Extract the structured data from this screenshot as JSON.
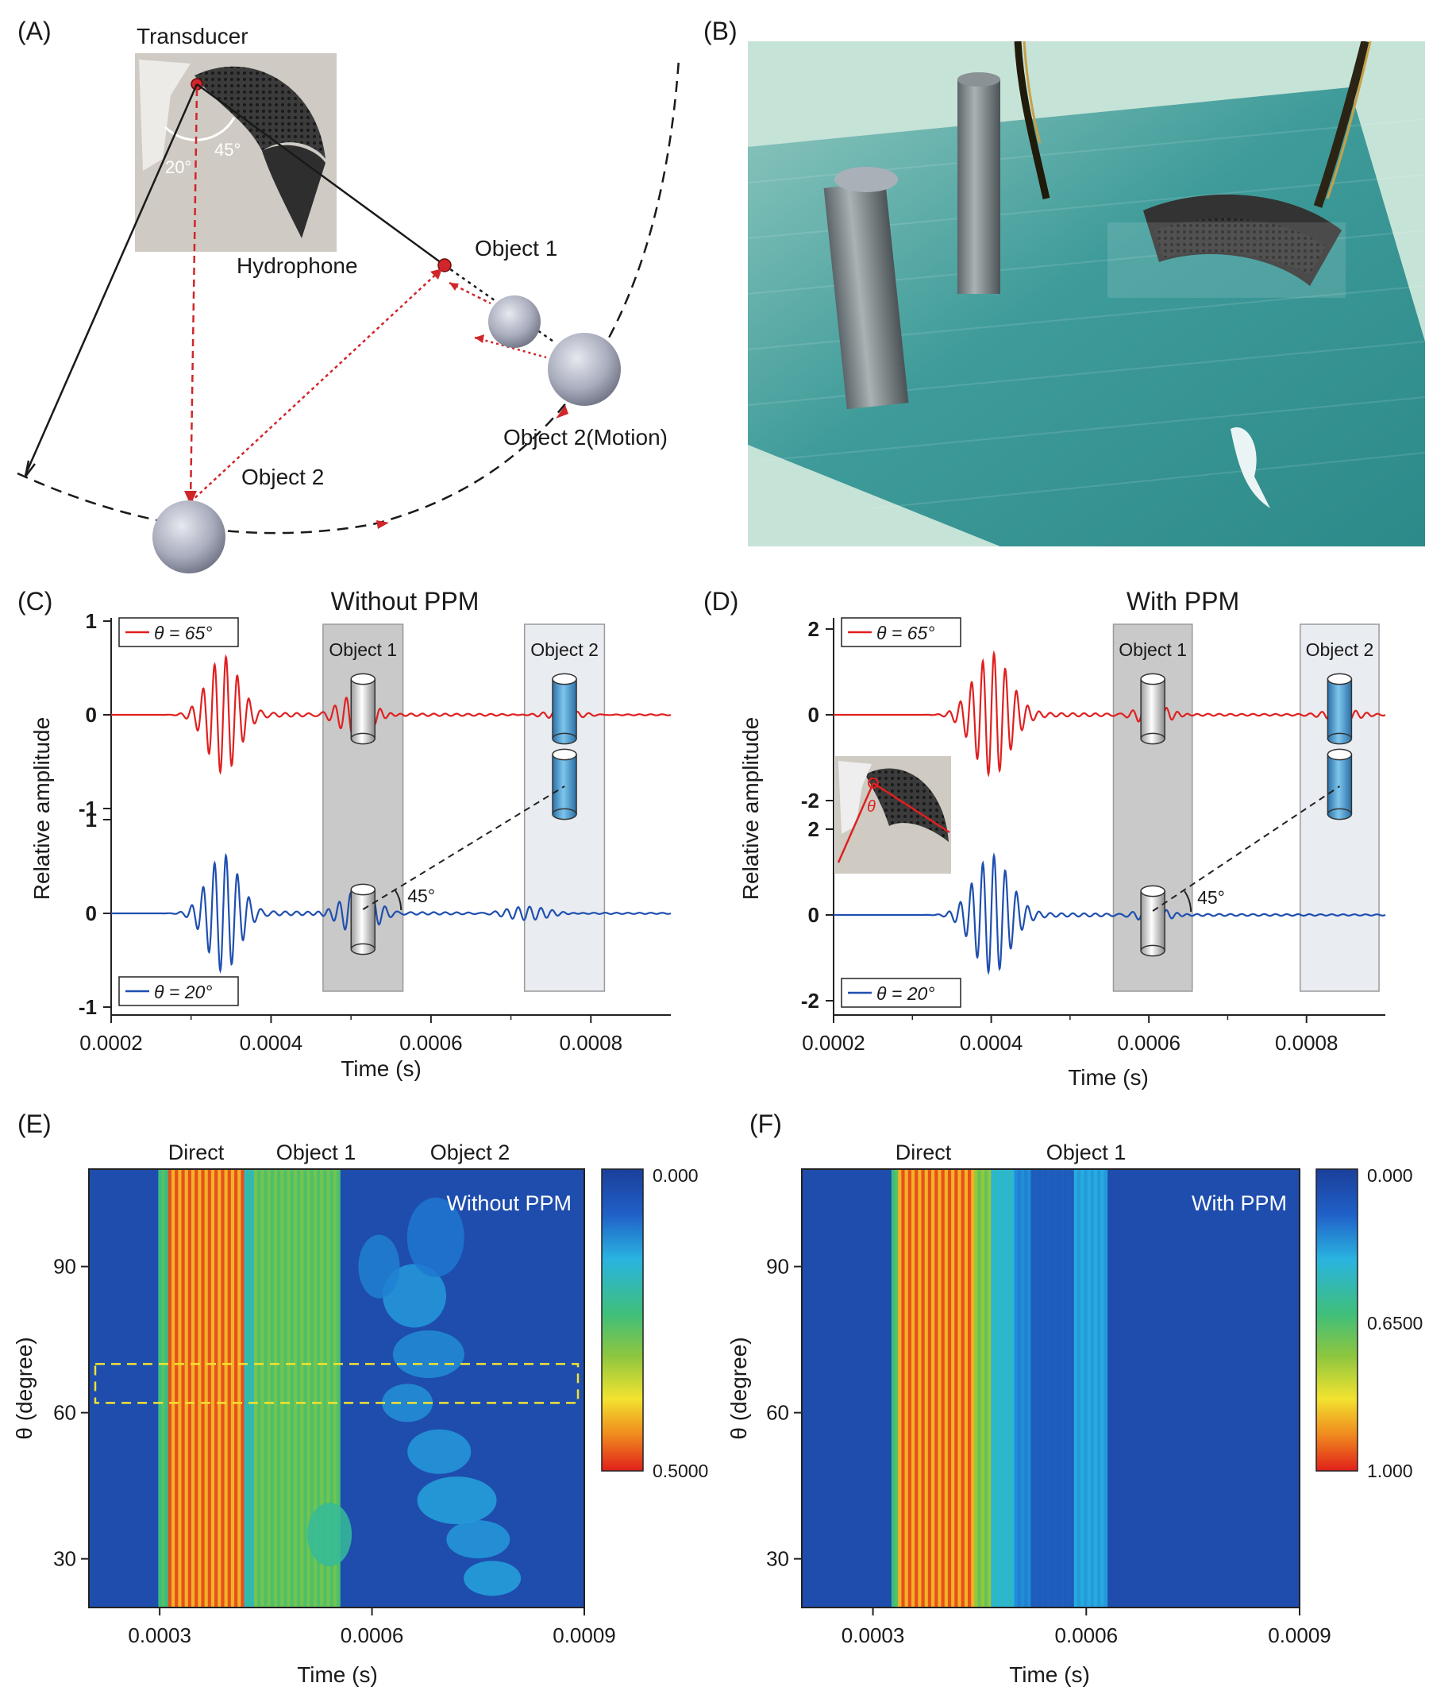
{
  "panel_a": {
    "letter": "(A)",
    "transducer_label": "Transducer",
    "hydrophone_label": "Hydrophone",
    "angle_20": "20°",
    "angle_45": "45°",
    "object1_label": "Object 1",
    "object2_label": "Object 2",
    "object2_motion_label": "Object 2(Motion)"
  },
  "panel_b": {
    "letter": "(B)"
  },
  "chart_data": [
    {
      "panel": "(C)",
      "type": "line",
      "title": "Without PPM",
      "xlabel": "Time (s)",
      "ylabel": "Relative amplitude",
      "xlim": [
        0.0002,
        0.0009
      ],
      "xticks": [
        "0.0002",
        "0.0004",
        "0.0006",
        "0.0008"
      ],
      "top_yticks": [
        "1",
        "0",
        "-1"
      ],
      "bottom_yticks": [
        "1",
        "0",
        "-1"
      ],
      "angle_label": "45°",
      "regions": [
        {
          "label": "Object 1",
          "x": [
            0.000465,
            0.000565
          ]
        },
        {
          "label": "Object 2",
          "x": [
            0.000717,
            0.000817
          ]
        }
      ],
      "series": [
        {
          "name": "θ = 65°",
          "theta": "65°",
          "color": "#e02020",
          "wavepackets": [
            {
              "center": 0.00034,
              "amplitude": 0.62,
              "width": 2.8e-05
            },
            {
              "center": 0.000505,
              "amplitude": 0.22,
              "width": 3e-05
            },
            {
              "center": 0.000765,
              "amplitude": 0.05,
              "width": 4e-05
            }
          ]
        },
        {
          "name": "θ = 20°",
          "theta": "20°",
          "color": "#1f4fb0",
          "wavepackets": [
            {
              "center": 0.00034,
              "amplitude": 0.62,
              "width": 2.8e-05
            },
            {
              "center": 0.00051,
              "amplitude": 0.25,
              "width": 3e-05
            },
            {
              "center": 0.00072,
              "amplitude": 0.08,
              "width": 4e-05
            }
          ]
        }
      ]
    },
    {
      "panel": "(D)",
      "type": "line",
      "title": "With PPM",
      "xlabel": "Time (s)",
      "ylabel": "Relative amplitude",
      "xlim": [
        0.0002,
        0.0009
      ],
      "xticks": [
        "0.0002",
        "0.0004",
        "0.0006",
        "0.0008"
      ],
      "top_yticks": [
        "2",
        "0",
        "-2"
      ],
      "bottom_yticks": [
        "2",
        "0",
        "-2"
      ],
      "angle_label": "45°",
      "inset_symbol": "θ",
      "regions": [
        {
          "label": "Object 1",
          "x": [
            0.000555,
            0.000655
          ]
        },
        {
          "label": "Object 2",
          "x": [
            0.000792,
            0.000892
          ]
        }
      ],
      "series": [
        {
          "name": "θ = 65°",
          "theta": "65°",
          "color": "#e02020",
          "wavepackets": [
            {
              "center": 0.0004,
              "amplitude": 1.4,
              "width": 3.2e-05
            },
            {
              "center": 0.000605,
              "amplitude": 0.25,
              "width": 3e-05
            },
            {
              "center": 0.000845,
              "amplitude": 0.12,
              "width": 3e-05
            }
          ]
        },
        {
          "name": "θ = 20°",
          "theta": "20°",
          "color": "#1f4fb0",
          "wavepackets": [
            {
              "center": 0.0004,
              "amplitude": 1.35,
              "width": 3.2e-05
            },
            {
              "center": 0.000605,
              "amplitude": 0.18,
              "width": 3e-05
            }
          ]
        }
      ]
    },
    {
      "panel": "(E)",
      "type": "heatmap",
      "annotation": "Without PPM",
      "xlabel": "Time (s)",
      "ylabel": "θ (degree)",
      "xlim": [
        0.0002,
        0.0009
      ],
      "ylim": [
        20,
        110
      ],
      "xticks": [
        "0.0003",
        "0.0006",
        "0.0009"
      ],
      "yticks": [
        "30",
        "60",
        "90"
      ],
      "colorbar_ticks": [
        "0.000",
        "0.5000"
      ],
      "region_labels": [
        "Direct",
        "Object 1",
        "Object 2"
      ],
      "highlight_theta": [
        62,
        70
      ]
    },
    {
      "panel": "(F)",
      "type": "heatmap",
      "annotation": "With PPM",
      "xlabel": "Time (s)",
      "ylabel": "θ (degree)",
      "xlim": [
        0.0002,
        0.0009
      ],
      "ylim": [
        20,
        110
      ],
      "xticks": [
        "0.0003",
        "0.0006",
        "0.0009"
      ],
      "yticks": [
        "30",
        "60",
        "90"
      ],
      "colorbar_ticks": [
        "0.000",
        "0.6500",
        "1.000"
      ],
      "region_labels": [
        "Direct",
        "Object 1"
      ]
    }
  ]
}
